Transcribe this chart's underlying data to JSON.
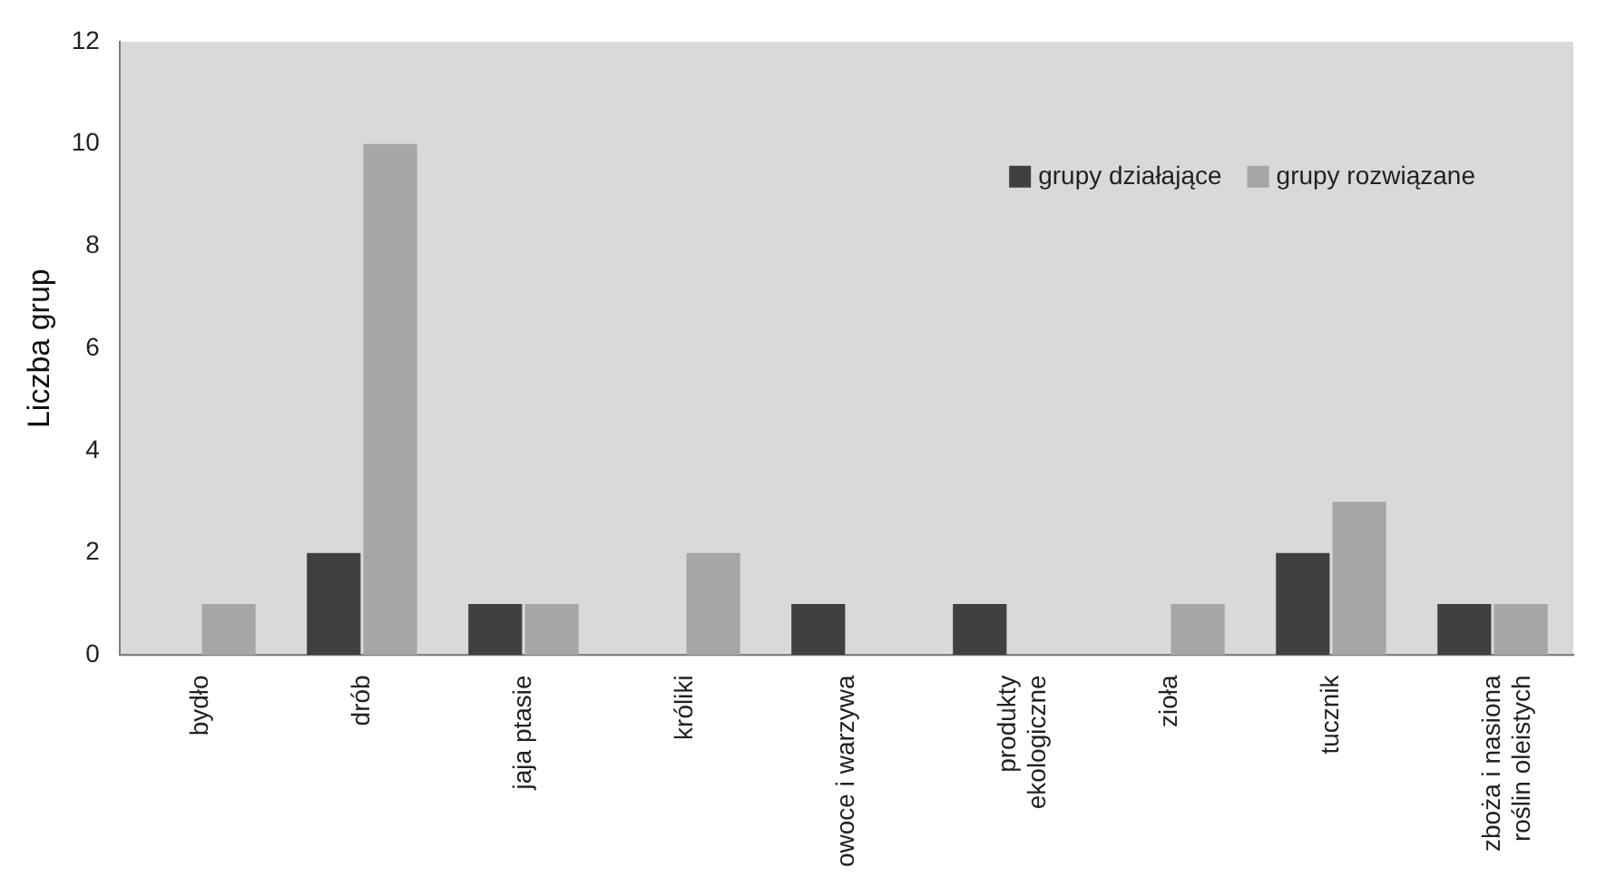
{
  "chart_data": {
    "type": "bar",
    "ylabel": "Liczba grup",
    "categories": [
      "bydło",
      "drób",
      "jaja ptasie",
      "króliki",
      "owoce i warzywa",
      "produkty ekologiczne",
      "zioła",
      "tucznik",
      "zboża i nasiona roślin oleistych"
    ],
    "series": [
      {
        "name": "grupy działające",
        "color": "#404040",
        "values": [
          0,
          2,
          1,
          0,
          1,
          1,
          0,
          2,
          1
        ]
      },
      {
        "name": "grupy rozwiązane",
        "color": "#a6a6a6",
        "values": [
          1,
          10,
          1,
          2,
          0,
          0,
          1,
          3,
          1
        ]
      }
    ],
    "ylim": [
      0,
      12
    ],
    "yticks": [
      0,
      2,
      4,
      6,
      8,
      10,
      12
    ],
    "grid": false,
    "legend": "top right"
  }
}
